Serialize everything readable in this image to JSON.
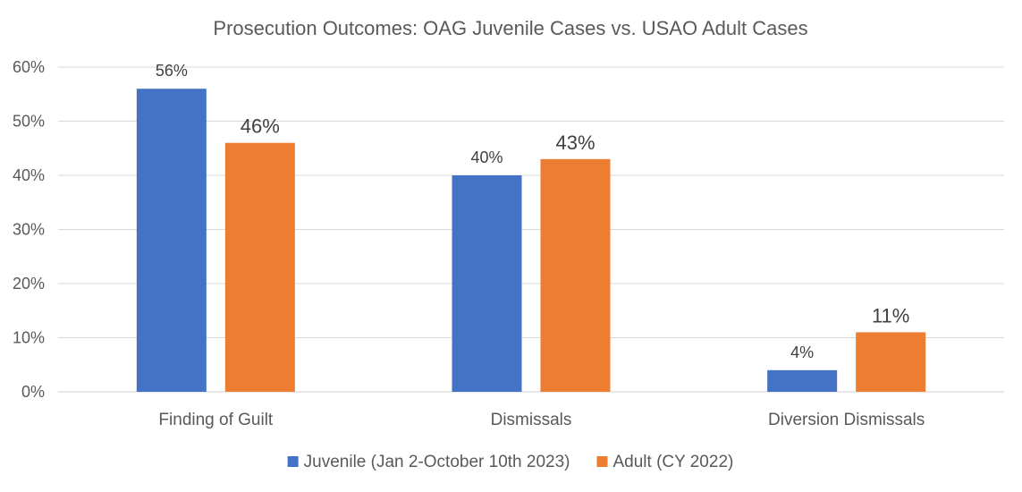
{
  "chart_data": {
    "type": "bar",
    "title": "Prosecution Outcomes: OAG Juvenile Cases vs. USAO Adult Cases",
    "categories": [
      "Finding of Guilt",
      "Dismissals",
      "Diversion Dismissals"
    ],
    "series": [
      {
        "name": "Juvenile (Jan 2-October 10th 2023)",
        "color": "#4472C4",
        "values": [
          56,
          40,
          4
        ],
        "labels": [
          "56%",
          "40%",
          "4%"
        ]
      },
      {
        "name": "Adult (CY 2022)",
        "color": "#ED7D31",
        "values": [
          46,
          43,
          11
        ],
        "labels": [
          "46%",
          "43%",
          "11%"
        ]
      }
    ],
    "ylim": [
      0,
      60
    ],
    "yticks": [
      0,
      10,
      20,
      30,
      40,
      50,
      60
    ],
    "ytick_labels": [
      "0%",
      "10%",
      "20%",
      "30%",
      "40%",
      "50%",
      "60%"
    ],
    "xlabel": "",
    "ylabel": "",
    "grid": true,
    "legend_position": "bottom"
  }
}
